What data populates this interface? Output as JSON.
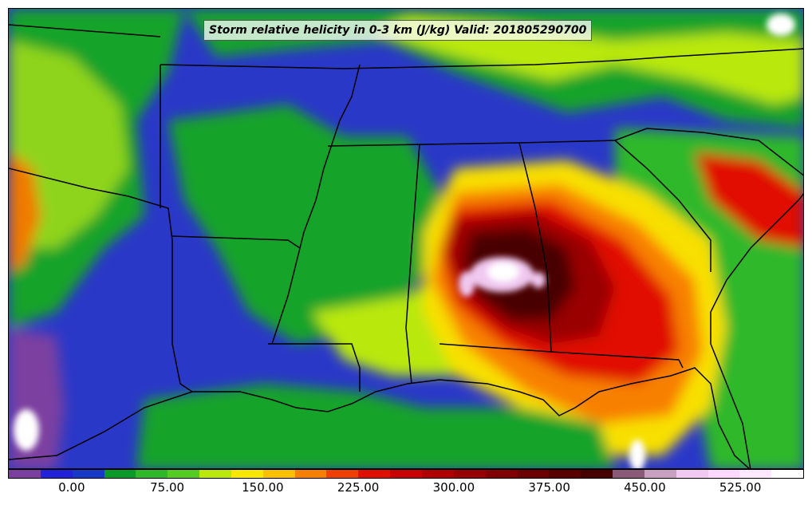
{
  "title": "Storm relative helicity in 0-3 km (J/kg) Valid: 201805290700",
  "colorbar": {
    "min": -50,
    "max": 575,
    "colors": [
      "#7b3fa0",
      "#2222d8",
      "#1838c8",
      "#0a9a2a",
      "#2eb82a",
      "#55cc22",
      "#b9e80a",
      "#f8e800",
      "#f8c000",
      "#f88000",
      "#f04000",
      "#e01000",
      "#c80000",
      "#b00000",
      "#980000",
      "#800000",
      "#6a0000",
      "#580000",
      "#460000",
      "#8a5a78",
      "#c8a0c0",
      "#f0c8f0",
      "#ffd8ff",
      "#ffe8ff",
      "#ffffff"
    ],
    "ticks": [
      "0.00",
      "75.00",
      "150.00",
      "225.00",
      "300.00",
      "375.00",
      "450.00",
      "525.00"
    ],
    "tick_values": [
      0,
      75,
      150,
      225,
      300,
      375,
      450,
      525
    ]
  }
}
